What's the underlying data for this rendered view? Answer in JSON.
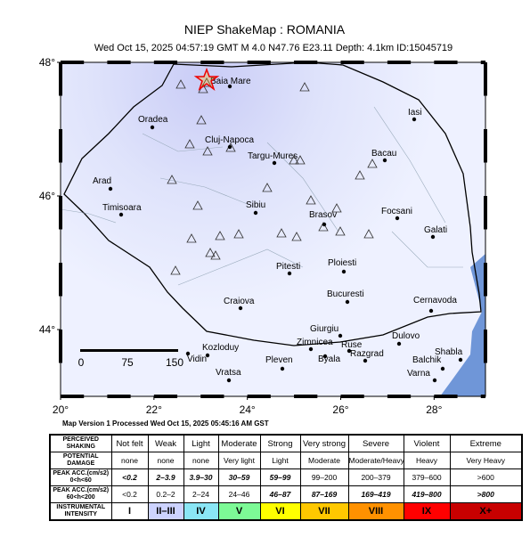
{
  "title": "NIEP ShakeMap : ROMANIA",
  "subtitle": "Wed Oct 15, 2025 04:57:19 GMT   M 4.0   N47.76 E23.11   Depth: 4.1km   ID:15045719",
  "map": {
    "lon_range": [
      20,
      29.1
    ],
    "lat_range": [
      43,
      48
    ],
    "lon_ticks": [
      {
        "value": 20,
        "label": "20°"
      },
      {
        "value": 22,
        "label": "22°"
      },
      {
        "value": 24,
        "label": "24°"
      },
      {
        "value": 26,
        "label": "26°"
      },
      {
        "value": 28,
        "label": "28°"
      }
    ],
    "lat_ticks": [
      {
        "value": 48,
        "label": "48°"
      },
      {
        "value": 46,
        "label": "46°"
      },
      {
        "value": 44,
        "label": "44°"
      }
    ],
    "cities": [
      "Baia Mare",
      "Oradea",
      "Cluj-Napoca",
      "Targu-Mures",
      "Iasi",
      "Bacau",
      "Arad",
      "Timisoara",
      "Sibiu",
      "Brasov",
      "Focsani",
      "Galati",
      "Ploiesti",
      "Pitesti",
      "Bucuresti",
      "Cernavoda",
      "Craiova",
      "Giurgiu",
      "Dulovo",
      "Kozloduy",
      "Zimnicea",
      "Ruse",
      "Shabla",
      "Vidin",
      "Razgrad",
      "Balchik",
      "Pleven",
      "Byala",
      "Varna",
      "Vratsa"
    ],
    "scale_labels": [
      "0",
      "75",
      "150"
    ]
  },
  "footer": "Map Version 1 Processed Wed Oct 15, 2025 05:45:16 AM GST",
  "table": {
    "rows": [
      {
        "label": [
          "PERCEIVED",
          "SHAKING"
        ],
        "cells": [
          "Not felt",
          "Weak",
          "Light",
          "Moderate",
          "Strong",
          "Very strong",
          "Severe",
          "Violent",
          "Extreme"
        ]
      },
      {
        "label": [
          "POTENTIAL",
          "DAMAGE"
        ],
        "cells": [
          "none",
          "none",
          "none",
          "Very light",
          "Light",
          "Moderate",
          "Moderate/Heavy",
          "Heavy",
          "Very Heavy"
        ]
      },
      {
        "label": [
          "PEAK ACC.(cm/s2)",
          "0<h<60"
        ],
        "cells": [
          "<0.2",
          "2–3.9",
          "3.9–30",
          "30–59",
          "59–99",
          "99–200",
          "200–379",
          "379–600",
          ">600"
        ]
      },
      {
        "label": [
          "PEAK ACC.(cm/s2)",
          "60<h<200"
        ],
        "cells": [
          "<0.2",
          "0.2–2",
          "2–24",
          "24–46",
          "46–87",
          "87–169",
          "169–419",
          "419–800",
          ">800"
        ]
      },
      {
        "label": [
          "INSTRUMENTAL",
          "INTENSITY"
        ],
        "cells": [
          "I",
          "II–III",
          "IV",
          "V",
          "VI",
          "VII",
          "VIII",
          "IX",
          "X+"
        ]
      }
    ],
    "colors": [
      "#ffffff",
      "#cdd3ff",
      "#8ae6f5",
      "#7dfa96",
      "#ffff00",
      "#ffc800",
      "#ff9100",
      "#ff0000",
      "#c80000"
    ]
  }
}
